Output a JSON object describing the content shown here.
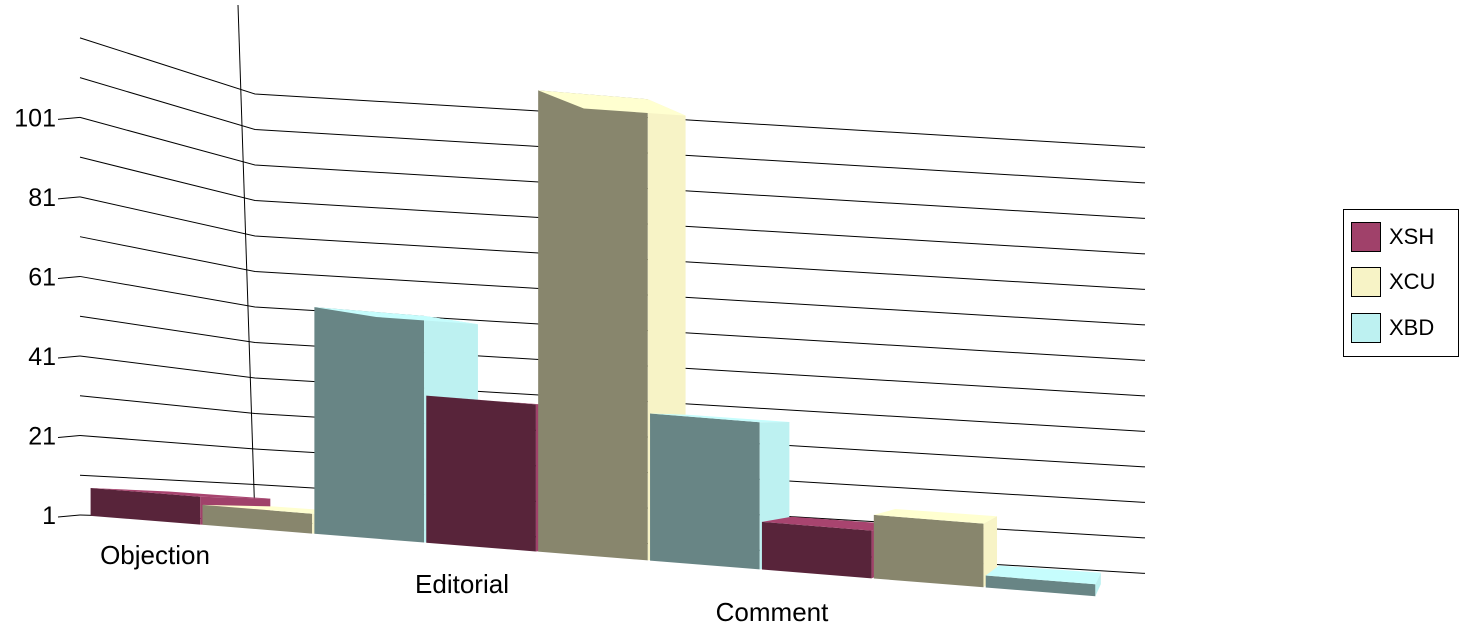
{
  "chart_data": {
    "type": "bar",
    "categories": [
      "Objection",
      "Editorial",
      "Comment"
    ],
    "series": [
      {
        "name": "XSH",
        "values": [
          8,
          38,
          13
        ],
        "color": "#a0416a"
      },
      {
        "name": "XCU",
        "values": [
          6,
          117,
          17
        ],
        "color": "#f7f3c6"
      },
      {
        "name": "XBD",
        "values": [
          58,
          38,
          4
        ],
        "color": "#bdf1f1"
      }
    ],
    "y_ticks": [
      1,
      21,
      41,
      61,
      81,
      101
    ],
    "ylim": [
      1,
      121
    ],
    "grid": true,
    "legend": "right",
    "title": "",
    "xlabel": "",
    "ylabel": ""
  }
}
